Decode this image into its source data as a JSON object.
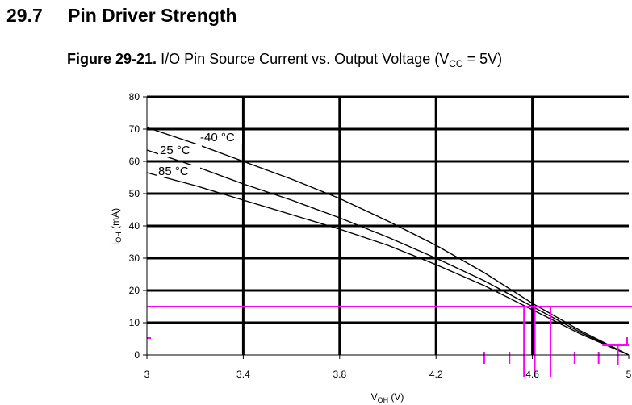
{
  "section": {
    "number": "29.7",
    "title": "Pin Driver Strength"
  },
  "caption": {
    "label": "Figure 29-21.",
    "text": "I/O Pin Source Current vs. Output Voltage (V",
    "subscript": "CC",
    "suffix": " = 5V)"
  },
  "chart_data": {
    "type": "line",
    "title": "",
    "xlabel": "V",
    "xlabel_sub": "OH",
    "xlabel_unit": " (V)",
    "ylabel": "I",
    "ylabel_sub": "OH",
    "ylabel_unit": " (mA)",
    "xlim": [
      3,
      5
    ],
    "ylim": [
      0,
      80
    ],
    "xticks": [
      "3",
      "3.4",
      "3.8",
      "4.2",
      "4.6",
      "5"
    ],
    "yticks": [
      "0",
      "10",
      "20",
      "30",
      "40",
      "50",
      "60",
      "70",
      "80"
    ],
    "grid": true,
    "series": [
      {
        "name": "-40 °C",
        "x": [
          3.0,
          3.2,
          3.4,
          3.6,
          3.8,
          4.0,
          4.2,
          4.4,
          4.6,
          4.8,
          5.0
        ],
        "y": [
          70.5,
          65.5,
          60.0,
          54.5,
          48.5,
          41.5,
          34.0,
          25.5,
          16.0,
          7.5,
          0.0
        ]
      },
      {
        "name": "25 °C",
        "x": [
          3.0,
          3.2,
          3.4,
          3.6,
          3.8,
          4.0,
          4.2,
          4.4,
          4.6,
          4.8,
          5.0
        ],
        "y": [
          63.5,
          58.5,
          53.0,
          48.0,
          42.5,
          36.5,
          30.0,
          23.0,
          15.0,
          7.0,
          0.0
        ]
      },
      {
        "name": "85 °C",
        "x": [
          3.0,
          3.2,
          3.4,
          3.6,
          3.8,
          4.0,
          4.2,
          4.4,
          4.6,
          4.8,
          5.0
        ],
        "y": [
          56.5,
          52.5,
          48.0,
          43.5,
          39.0,
          34.0,
          28.0,
          21.5,
          14.0,
          6.5,
          0.0
        ]
      }
    ],
    "annotations": {
      "color": "#ff00ff",
      "hline_y": 15,
      "vlines_x": [
        4.565,
        4.61,
        4.675
      ],
      "short_hline": {
        "y": 3,
        "x_from": 4.89,
        "x_to": 5.0
      },
      "small_vlines_x": [
        4.955
      ],
      "ticks_below_x": [
        4.4,
        4.505,
        4.775,
        4.875
      ],
      "ticks_at_zero_x": [
        5.0
      ],
      "left_tick_y": 5
    }
  }
}
